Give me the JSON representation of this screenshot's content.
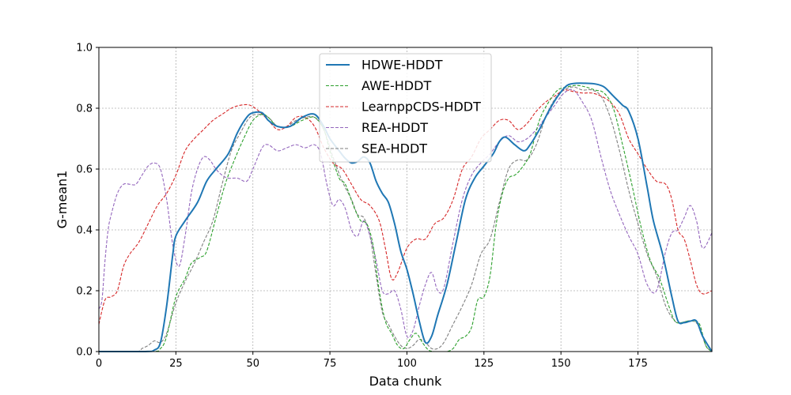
{
  "chart_data": {
    "type": "line",
    "title": "",
    "xlabel": "Data chunk",
    "ylabel": "G-mean1",
    "xlim": [
      0,
      199
    ],
    "ylim": [
      0,
      1.0
    ],
    "xticks": [
      0,
      25,
      50,
      75,
      100,
      125,
      150,
      175
    ],
    "yticks": [
      0.0,
      0.2,
      0.4,
      0.6,
      0.8,
      1.0
    ],
    "xtick_labels": [
      "0",
      "25",
      "50",
      "75",
      "100",
      "125",
      "150",
      "175"
    ],
    "ytick_labels": [
      "0.0",
      "0.2",
      "0.4",
      "0.6",
      "0.8",
      "1.0"
    ],
    "grid": true,
    "legend_position": "top-center",
    "series": [
      {
        "name": "HDWE-HDDT",
        "color": "#1f77b4",
        "style": "solid",
        "x": [
          0,
          15,
          18,
          20,
          22,
          24,
          25,
          28,
          32,
          35,
          38,
          42,
          45,
          48,
          50,
          53,
          55,
          58,
          62,
          66,
          70,
          73,
          75,
          78,
          80,
          82,
          84,
          86,
          88,
          90,
          92,
          94,
          96,
          98,
          100,
          102,
          104,
          106,
          108,
          110,
          113,
          116,
          119,
          122,
          125,
          128,
          130,
          132,
          135,
          138,
          140,
          143,
          146,
          149,
          152,
          155,
          158,
          161,
          164,
          167,
          170,
          172,
          175,
          178,
          180,
          183,
          186,
          188,
          190,
          192,
          194,
          196,
          199
        ],
        "y": [
          0.0,
          0.0,
          0.005,
          0.03,
          0.15,
          0.32,
          0.38,
          0.43,
          0.49,
          0.56,
          0.6,
          0.65,
          0.72,
          0.77,
          0.785,
          0.785,
          0.76,
          0.74,
          0.74,
          0.77,
          0.78,
          0.74,
          0.7,
          0.66,
          0.635,
          0.62,
          0.625,
          0.64,
          0.62,
          0.56,
          0.52,
          0.49,
          0.42,
          0.33,
          0.27,
          0.19,
          0.1,
          0.03,
          0.05,
          0.12,
          0.22,
          0.36,
          0.5,
          0.57,
          0.61,
          0.65,
          0.69,
          0.705,
          0.68,
          0.66,
          0.68,
          0.73,
          0.79,
          0.84,
          0.875,
          0.882,
          0.882,
          0.88,
          0.87,
          0.84,
          0.81,
          0.79,
          0.7,
          0.54,
          0.43,
          0.32,
          0.18,
          0.1,
          0.095,
          0.1,
          0.1,
          0.05,
          0.0
        ]
      },
      {
        "name": "AWE-HDDT",
        "color": "#2ca02c",
        "style": "dashed",
        "x": [
          0,
          17,
          20,
          22,
          25,
          28,
          30,
          33,
          35,
          38,
          41,
          44,
          47,
          50,
          53,
          55,
          58,
          62,
          66,
          70,
          73,
          75,
          78,
          80,
          83,
          85,
          87,
          89,
          91,
          93,
          95,
          97,
          99,
          101,
          103,
          105,
          107,
          109,
          111,
          113,
          115,
          117,
          119,
          121,
          123,
          125,
          127,
          129,
          131,
          133,
          135,
          137,
          140,
          143,
          146,
          149,
          152,
          155,
          158,
          161,
          164,
          167,
          170,
          173,
          176,
          179,
          182,
          185,
          187,
          189,
          191,
          193,
          195,
          197,
          199
        ],
        "y": [
          0.0,
          0.0,
          0.01,
          0.05,
          0.18,
          0.24,
          0.29,
          0.31,
          0.33,
          0.44,
          0.55,
          0.63,
          0.7,
          0.76,
          0.78,
          0.77,
          0.74,
          0.74,
          0.76,
          0.77,
          0.73,
          0.66,
          0.57,
          0.55,
          0.47,
          0.43,
          0.42,
          0.35,
          0.2,
          0.1,
          0.06,
          0.02,
          0.01,
          0.04,
          0.06,
          0.03,
          0.005,
          0.0,
          0.0,
          0.0,
          0.01,
          0.04,
          0.05,
          0.08,
          0.17,
          0.18,
          0.25,
          0.42,
          0.52,
          0.57,
          0.58,
          0.6,
          0.65,
          0.76,
          0.82,
          0.86,
          0.87,
          0.875,
          0.87,
          0.86,
          0.85,
          0.8,
          0.68,
          0.55,
          0.41,
          0.3,
          0.24,
          0.15,
          0.1,
          0.095,
          0.1,
          0.1,
          0.09,
          0.02,
          0.0
        ]
      },
      {
        "name": "LearnppCDS-HDDT",
        "color": "#d62728",
        "style": "dashed",
        "x": [
          0,
          2,
          4,
          6,
          8,
          10,
          13,
          16,
          19,
          22,
          25,
          28,
          31,
          34,
          37,
          40,
          43,
          46,
          49,
          52,
          55,
          58,
          61,
          64,
          67,
          70,
          73,
          76,
          79,
          82,
          85,
          88,
          91,
          93,
          95,
          97,
          100,
          103,
          106,
          109,
          112,
          115,
          118,
          121,
          124,
          127,
          130,
          133,
          136,
          139,
          142,
          145,
          148,
          151,
          154,
          157,
          160,
          163,
          166,
          169,
          172,
          175,
          178,
          181,
          184,
          186,
          188,
          190,
          192,
          194,
          196,
          199
        ],
        "y": [
          0.09,
          0.17,
          0.18,
          0.2,
          0.28,
          0.32,
          0.36,
          0.42,
          0.48,
          0.52,
          0.58,
          0.66,
          0.7,
          0.73,
          0.76,
          0.78,
          0.8,
          0.81,
          0.81,
          0.79,
          0.76,
          0.73,
          0.74,
          0.77,
          0.77,
          0.74,
          0.67,
          0.62,
          0.6,
          0.55,
          0.5,
          0.48,
          0.43,
          0.34,
          0.24,
          0.26,
          0.34,
          0.37,
          0.37,
          0.42,
          0.44,
          0.5,
          0.6,
          0.64,
          0.7,
          0.73,
          0.76,
          0.76,
          0.73,
          0.75,
          0.79,
          0.82,
          0.84,
          0.86,
          0.855,
          0.85,
          0.85,
          0.84,
          0.82,
          0.78,
          0.7,
          0.65,
          0.6,
          0.56,
          0.55,
          0.5,
          0.4,
          0.37,
          0.3,
          0.22,
          0.19,
          0.2
        ]
      },
      {
        "name": "REA-HDDT",
        "color": "#9467bd",
        "style": "dashed",
        "x": [
          0,
          1,
          2,
          3,
          4,
          6,
          8,
          10,
          12,
          14,
          16,
          18,
          20,
          22,
          24,
          26,
          28,
          30,
          32,
          34,
          36,
          38,
          40,
          42,
          45,
          48,
          50,
          53,
          55,
          58,
          61,
          64,
          67,
          70,
          72,
          74,
          76,
          78,
          80,
          82,
          84,
          86,
          88,
          90,
          92,
          94,
          96,
          98,
          100,
          102,
          104,
          106,
          108,
          110,
          112,
          115,
          118,
          121,
          124,
          127,
          130,
          133,
          136,
          139,
          142,
          145,
          148,
          151,
          154,
          157,
          160,
          163,
          166,
          169,
          172,
          175,
          178,
          181,
          184,
          186,
          188,
          190,
          192,
          194,
          196,
          199
        ],
        "y": [
          0.14,
          0.17,
          0.3,
          0.4,
          0.45,
          0.52,
          0.55,
          0.55,
          0.55,
          0.58,
          0.61,
          0.62,
          0.6,
          0.5,
          0.35,
          0.28,
          0.38,
          0.52,
          0.6,
          0.64,
          0.63,
          0.6,
          0.58,
          0.57,
          0.57,
          0.56,
          0.6,
          0.67,
          0.68,
          0.66,
          0.67,
          0.68,
          0.67,
          0.68,
          0.65,
          0.55,
          0.48,
          0.5,
          0.47,
          0.4,
          0.38,
          0.43,
          0.38,
          0.3,
          0.2,
          0.19,
          0.2,
          0.14,
          0.05,
          0.07,
          0.15,
          0.22,
          0.26,
          0.2,
          0.21,
          0.36,
          0.5,
          0.58,
          0.62,
          0.65,
          0.69,
          0.71,
          0.69,
          0.7,
          0.73,
          0.77,
          0.81,
          0.85,
          0.86,
          0.82,
          0.76,
          0.64,
          0.53,
          0.45,
          0.38,
          0.32,
          0.22,
          0.2,
          0.33,
          0.39,
          0.4,
          0.44,
          0.48,
          0.43,
          0.34,
          0.39
        ]
      },
      {
        "name": "SEA-HDDT",
        "color": "#7f7f7f",
        "style": "dashed",
        "x": [
          0,
          12,
          14,
          16,
          18,
          20,
          22,
          25,
          28,
          31,
          34,
          37,
          40,
          43,
          46,
          49,
          52,
          55,
          58,
          61,
          64,
          67,
          70,
          73,
          76,
          79,
          82,
          84,
          86,
          88,
          90,
          92,
          94,
          96,
          98,
          100,
          102,
          104,
          106,
          108,
          110,
          112,
          115,
          118,
          121,
          124,
          127,
          130,
          133,
          136,
          139,
          142,
          145,
          148,
          151,
          154,
          157,
          160,
          163,
          166,
          169,
          172,
          175,
          178,
          181,
          184,
          187,
          189,
          191,
          193,
          195,
          197,
          199
        ],
        "y": [
          0.0,
          0.0,
          0.01,
          0.02,
          0.035,
          0.03,
          0.06,
          0.16,
          0.23,
          0.29,
          0.36,
          0.43,
          0.55,
          0.66,
          0.72,
          0.77,
          0.78,
          0.77,
          0.74,
          0.74,
          0.76,
          0.77,
          0.77,
          0.73,
          0.64,
          0.56,
          0.5,
          0.45,
          0.44,
          0.38,
          0.25,
          0.13,
          0.09,
          0.05,
          0.02,
          0.01,
          0.02,
          0.04,
          0.03,
          0.01,
          0.01,
          0.03,
          0.09,
          0.15,
          0.22,
          0.32,
          0.37,
          0.49,
          0.6,
          0.63,
          0.63,
          0.68,
          0.77,
          0.83,
          0.86,
          0.87,
          0.86,
          0.86,
          0.84,
          0.77,
          0.66,
          0.53,
          0.42,
          0.32,
          0.25,
          0.15,
          0.1,
          0.095,
          0.1,
          0.1,
          0.08,
          0.02,
          0.0
        ]
      }
    ]
  }
}
